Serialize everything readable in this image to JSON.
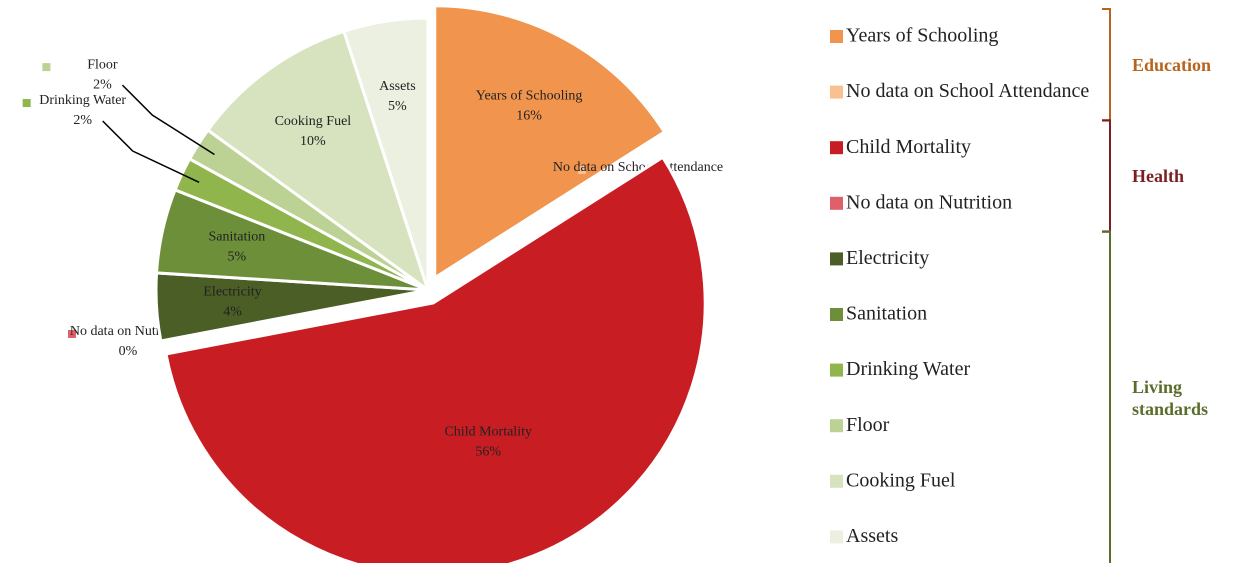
{
  "chart_data": {
    "type": "pie",
    "categories": [
      "Years of Schooling",
      "No data on School Attendance",
      "Child Mortality",
      "No data on Nutrition",
      "Electricity",
      "Sanitation",
      "Drinking Water",
      "Floor",
      "Cooking Fuel",
      "Assets"
    ],
    "values": [
      16,
      0,
      56,
      0,
      4,
      5,
      2,
      2,
      10,
      5
    ],
    "value_labels": [
      "16%",
      "0%",
      "56%",
      "0%",
      "4%",
      "5%",
      "2%",
      "2%",
      "10%",
      "5%"
    ],
    "colors": [
      "#f0944e",
      "#f9c18f",
      "#c81e23",
      "#e0606a",
      "#4a5e25",
      "#6e8f3a",
      "#8fb54c",
      "#bcd194",
      "#d7e3bf",
      "#ecf0e0"
    ],
    "legend_groups": [
      {
        "name": "Education",
        "color": "#b5651d"
      },
      {
        "name": "Health",
        "color": "#7a1f22"
      },
      {
        "name": "Living standards",
        "color": "#5a6e2c"
      }
    ]
  }
}
